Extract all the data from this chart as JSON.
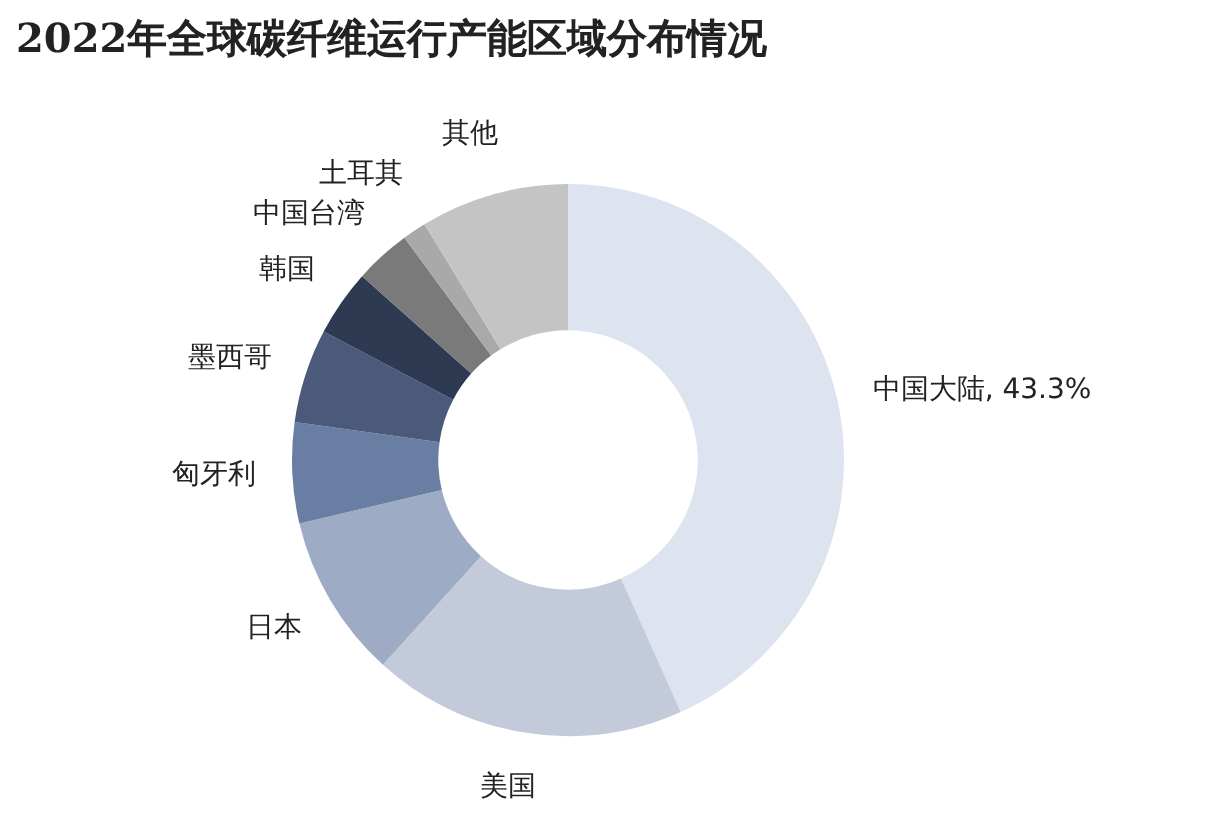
{
  "chart_data": {
    "type": "donut",
    "title": "2022年全球碳纤维运行产能区域分布情况",
    "categories": [
      "中国大陆",
      "美国",
      "日本",
      "匈牙利",
      "墨西哥",
      "韩国",
      "中国台湾",
      "土耳其",
      "其他"
    ],
    "values": [
      43.3,
      18.4,
      9.6,
      5.9,
      5.5,
      3.9,
      3.3,
      1.4,
      8.7
    ],
    "value_labels": [
      "43.3%",
      null,
      null,
      null,
      null,
      null,
      null,
      null,
      null
    ],
    "colors": [
      "#dde3ef",
      "#c3cbdb",
      "#9eabc4",
      "#6a7ea3",
      "#4b5a7a",
      "#2e3a52",
      "#7a7a7a",
      "#a9a9a9",
      "#c4c4c4"
    ],
    "legend": false
  }
}
